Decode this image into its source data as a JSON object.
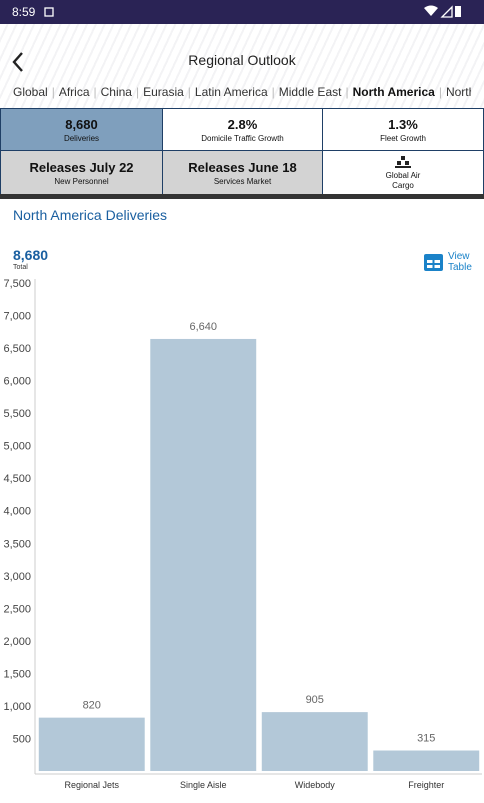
{
  "status_bar": {
    "time": "8:59"
  },
  "header": {
    "title": "Regional Outlook"
  },
  "tabs": [
    "Global",
    "Africa",
    "China",
    "Eurasia",
    "Latin America",
    "Middle East",
    "North America",
    "Northeast Asia"
  ],
  "tiles": [
    {
      "value": "8,680",
      "label": "Deliveries"
    },
    {
      "value": "2.8%",
      "label": "Domicile Traffic Growth"
    },
    {
      "value": "1.3%",
      "label": "Fleet Growth"
    },
    {
      "value": "Releases July 22",
      "label": "New Personnel"
    },
    {
      "value": "Releases June 18",
      "label": "Services Market"
    },
    {
      "label": "Global Air Cargo"
    }
  ],
  "summary": {
    "value": "8,680",
    "label": "Total",
    "action": "View Table"
  },
  "chart_data": {
    "type": "bar",
    "title": "North America Deliveries",
    "categories": [
      "Regional Jets",
      "Single Aisle",
      "Widebody",
      "Freighter"
    ],
    "values": [
      820,
      6640,
      905,
      315
    ],
    "value_labels": [
      "820",
      "6,640",
      "905",
      "315"
    ],
    "color": "#b3c8d8",
    "ylim": [
      0,
      7500
    ],
    "yticks": [
      500,
      {
        "value": 1000,
        "label": "1,000"
      },
      {
        "value": 1500,
        "label": "1,500"
      },
      {
        "value": 2000,
        "label": "2,000"
      },
      {
        "value": 2500,
        "label": "2,500"
      },
      {
        "value": 3000,
        "label": "3,000"
      },
      {
        "value": 3500,
        "label": "3,500"
      },
      {
        "value": 4000,
        "label": "4,000"
      },
      {
        "value": 4500,
        "label": "4,500"
      },
      {
        "value": 5000,
        "label": "5,000"
      },
      {
        "value": 5500,
        "label": "5,500"
      },
      {
        "value": 6000,
        "label": "6,000"
      },
      {
        "value": 6500,
        "label": "6,500"
      },
      {
        "value": 7000,
        "label": "7,000"
      },
      {
        "value": 7500,
        "label": "7,500"
      }
    ],
    "grid": false
  }
}
